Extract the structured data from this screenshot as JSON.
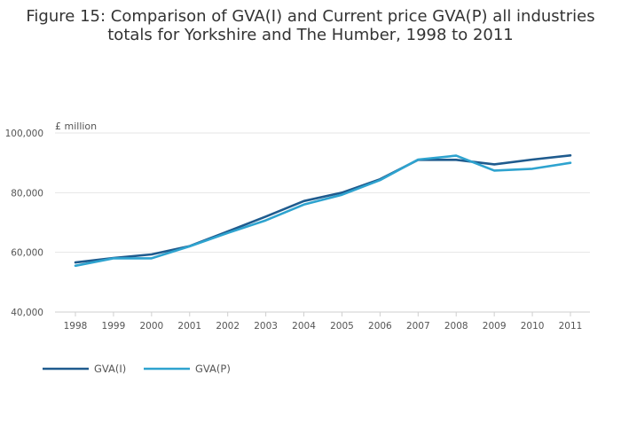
{
  "title_lines": [
    "Figure 15: Comparison of GVA(I) and Current price GVA(P) all industries",
    "totals for Yorkshire and The Humber, 1998 to 2011"
  ],
  "chart_data": {
    "type": "line",
    "title": "Figure 15: Comparison of GVA(I) and Current price GVA(P) all industries totals for Yorkshire and The Humber, 1998 to 2011",
    "ylabel": "£ million",
    "xlabel": "",
    "categories": [
      "1998",
      "1999",
      "2000",
      "2001",
      "2002",
      "2003",
      "2004",
      "2005",
      "2006",
      "2007",
      "2008",
      "2009",
      "2010",
      "2011"
    ],
    "ylim": [
      40000,
      100000
    ],
    "yticks": [
      "40,000",
      "60,000",
      "80,000",
      "100,000"
    ],
    "grid": true,
    "legend_position": "bottom-left",
    "series": [
      {
        "name": "GVA(I)",
        "color": "#1f5b8e",
        "values": [
          56600,
          58100,
          59300,
          62100,
          67000,
          72000,
          77200,
          80000,
          84500,
          91000,
          91000,
          89500,
          91100,
          92500
        ]
      },
      {
        "name": "GVA(P)",
        "color": "#2ea3cf",
        "values": [
          55500,
          58000,
          58000,
          62000,
          66500,
          70700,
          76000,
          79300,
          84200,
          91100,
          92400,
          87400,
          88000,
          90000
        ]
      }
    ]
  }
}
